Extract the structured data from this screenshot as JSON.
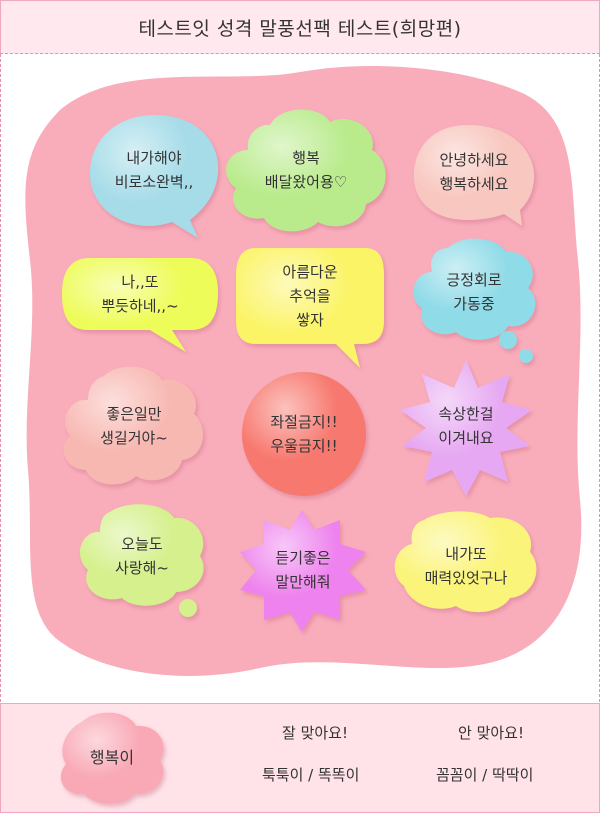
{
  "title": "테스트잇 성격 말풍선팩 테스트(희망편)",
  "bubbles": [
    {
      "line1": "내가해야",
      "line2": "비로소완벽,,",
      "color": "#a5dce8"
    },
    {
      "line1": "행복",
      "line2": "배달왔어용♡",
      "color": "#b9eb8c"
    },
    {
      "line1": "안녕하세요",
      "line2": "행복하세요",
      "color": "#f8c8c0"
    },
    {
      "line1": "나,,또",
      "line2": "뿌듯하네,,~",
      "color": "#eefc5a"
    },
    {
      "line1": "아름다운",
      "line2": "추억을",
      "line3": "쌓자",
      "color": "#fbf466"
    },
    {
      "line1": "긍정회로",
      "line2": "가동중",
      "color": "#90dbe8"
    },
    {
      "line1": "좋은일만",
      "line2": "생길거야~",
      "color": "#f8b8b2"
    },
    {
      "line1": "좌절금지!!",
      "line2": "우울금지!!",
      "color": "#f7786e"
    },
    {
      "line1": "속상한걸",
      "line2": "이겨내요",
      "color": "#e6a8f2"
    },
    {
      "line1": "오늘도",
      "line2": "사랑해~",
      "color": "#d5f08c"
    },
    {
      "line1": "듣기좋은",
      "line2": "말만해줘",
      "color": "#ee82ee"
    },
    {
      "line1": "내가또",
      "line2": "매력있엇구나",
      "color": "#fbf47a"
    }
  ],
  "footer": {
    "result": "행복이",
    "match_title": "잘 맞아요!",
    "match_value": "툭툭이 / 똑똑이",
    "mismatch_title": "안 맞아요!",
    "mismatch_value": "꼼꼼이 / 딱딱이"
  },
  "colors": {
    "background_blob": "#f9adbb",
    "frame_border": "#e88fae",
    "footer_bg": "#ffe3e9",
    "result_bubble": "#f9a9b6"
  }
}
